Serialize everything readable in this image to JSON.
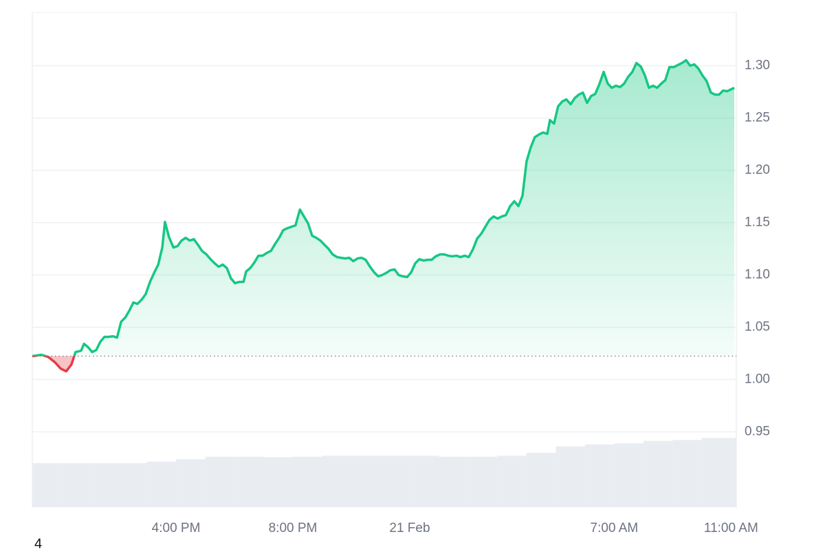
{
  "chart_data": {
    "type": "line",
    "up_color": "#16c784",
    "down_color": "#ea3943",
    "volume_color": "#e9edf2",
    "grid": true,
    "baseline": 1.0224,
    "xlim": [
      11.08,
      35.18
    ],
    "ylim": [
      0.878,
      1.351
    ],
    "xticks": [
      {
        "value": 16,
        "label": "4:00 PM"
      },
      {
        "value": 20,
        "label": "8:00 PM"
      },
      {
        "value": 24,
        "label": "21 Feb"
      },
      {
        "value": 31,
        "label": "7:00 AM"
      },
      {
        "value": 35,
        "label": "11:00 AM"
      }
    ],
    "yticks": [
      0.95,
      {
        "value": 1.0,
        "label": "1.00"
      },
      1.05,
      {
        "value": 1.1,
        "label": "1.10"
      },
      1.15,
      {
        "value": 1.2,
        "label": "1.20"
      },
      1.25,
      {
        "value": 1.3,
        "label": "1.30"
      }
    ],
    "x": [
      11.08,
      11.39,
      11.62,
      11.86,
      12.05,
      12.24,
      12.42,
      12.56,
      12.75,
      12.85,
      12.99,
      13.13,
      13.27,
      13.41,
      13.55,
      13.69,
      13.84,
      13.98,
      14.12,
      14.26,
      14.4,
      14.54,
      14.68,
      14.82,
      14.96,
      15.11,
      15.25,
      15.39,
      15.53,
      15.62,
      15.76,
      15.91,
      16.05,
      16.19,
      16.33,
      16.47,
      16.61,
      16.75,
      16.89,
      17.04,
      17.18,
      17.32,
      17.46,
      17.6,
      17.74,
      17.88,
      18.02,
      18.16,
      18.31,
      18.4,
      18.54,
      18.68,
      18.82,
      18.96,
      19.11,
      19.25,
      19.39,
      19.53,
      19.67,
      19.81,
      19.95,
      20.09,
      20.24,
      20.38,
      20.52,
      20.66,
      20.8,
      20.94,
      21.08,
      21.22,
      21.36,
      21.51,
      21.65,
      21.79,
      21.93,
      22.07,
      22.21,
      22.35,
      22.49,
      22.64,
      22.78,
      22.92,
      23.06,
      23.2,
      23.34,
      23.48,
      23.62,
      23.76,
      23.91,
      24.05,
      24.19,
      24.33,
      24.47,
      24.61,
      24.75,
      24.89,
      25.04,
      25.18,
      25.32,
      25.46,
      25.6,
      25.74,
      25.88,
      26.02,
      26.16,
      26.31,
      26.45,
      26.59,
      26.73,
      26.87,
      27.01,
      27.15,
      27.29,
      27.44,
      27.58,
      27.72,
      27.86,
      28.0,
      28.14,
      28.28,
      28.42,
      28.56,
      28.71,
      28.8,
      28.94,
      29.08,
      29.22,
      29.36,
      29.51,
      29.65,
      29.79,
      29.93,
      30.07,
      30.21,
      30.35,
      30.49,
      30.64,
      30.78,
      30.92,
      31.06,
      31.2,
      31.34,
      31.48,
      31.62,
      31.76,
      31.91,
      32.05,
      32.19,
      32.33,
      32.47,
      32.61,
      32.75,
      32.89,
      33.04,
      33.18,
      33.32,
      33.46,
      33.6,
      33.74,
      33.88,
      34.02,
      34.16,
      34.31,
      34.45,
      34.59,
      34.73,
      34.87,
      35.01,
      35.11
    ],
    "values": [
      1.0224,
      1.0237,
      1.0217,
      1.0164,
      1.0105,
      1.0079,
      1.0145,
      1.0263,
      1.0276,
      1.0342,
      1.0309,
      1.0263,
      1.0283,
      1.0362,
      1.0408,
      1.0408,
      1.0414,
      1.0401,
      1.0553,
      1.0592,
      1.0658,
      1.0737,
      1.0724,
      1.0763,
      1.0816,
      1.0934,
      1.102,
      1.1099,
      1.1263,
      1.1507,
      1.1362,
      1.1263,
      1.1276,
      1.1329,
      1.1355,
      1.1329,
      1.1342,
      1.1289,
      1.123,
      1.1197,
      1.1151,
      1.1112,
      1.1079,
      1.1099,
      1.1066,
      1.0967,
      1.0921,
      1.0934,
      1.0934,
      1.1033,
      1.1066,
      1.1118,
      1.1184,
      1.1184,
      1.1211,
      1.123,
      1.1296,
      1.1355,
      1.1428,
      1.1447,
      1.1461,
      1.1474,
      1.1625,
      1.1559,
      1.1493,
      1.1375,
      1.1355,
      1.1329,
      1.1289,
      1.125,
      1.1197,
      1.1171,
      1.1164,
      1.1158,
      1.1164,
      1.1132,
      1.1158,
      1.1164,
      1.1145,
      1.1079,
      1.1026,
      1.0987,
      1.1,
      1.102,
      1.1046,
      1.1053,
      1.1,
      1.0987,
      1.098,
      1.1026,
      1.1112,
      1.1151,
      1.1138,
      1.1145,
      1.1145,
      1.1178,
      1.1197,
      1.1197,
      1.1184,
      1.1178,
      1.1184,
      1.1171,
      1.1184,
      1.1171,
      1.1243,
      1.1349,
      1.1395,
      1.1461,
      1.1526,
      1.1559,
      1.1539,
      1.1559,
      1.1572,
      1.1658,
      1.1704,
      1.1658,
      1.1757,
      1.2086,
      1.2217,
      1.2316,
      1.2342,
      1.2362,
      1.2349,
      1.248,
      1.2447,
      1.2612,
      1.2658,
      1.2678,
      1.2632,
      1.2691,
      1.2724,
      1.2743,
      1.2645,
      1.2711,
      1.273,
      1.2822,
      1.2941,
      1.2829,
      1.2789,
      1.2809,
      1.2796,
      1.2829,
      1.2895,
      1.2941,
      1.3026,
      1.2993,
      1.2908,
      1.2789,
      1.2809,
      1.2789,
      1.2829,
      1.2862,
      1.2987,
      1.2987,
      1.3007,
      1.3026,
      1.3053,
      1.3,
      1.3013,
      1.2974,
      1.2908,
      1.2855,
      1.2743,
      1.2724,
      1.2724,
      1.2763,
      1.2757,
      1.2776,
      1.2789
    ],
    "volume": {
      "lim": [
        0,
        100
      ],
      "x": [
        11.08,
        12,
        13,
        14,
        15,
        16,
        17,
        18,
        19,
        20,
        21,
        22,
        23,
        24,
        25,
        26,
        27,
        28,
        29,
        30,
        31,
        32,
        33,
        34,
        35
      ],
      "values": [
        8.9,
        8.9,
        8.9,
        8.9,
        9.2,
        9.7,
        10.2,
        10.2,
        10.1,
        10.2,
        10.4,
        10.4,
        10.4,
        10.4,
        10.2,
        10.2,
        10.4,
        11.0,
        12.3,
        12.7,
        12.9,
        13.4,
        13.6,
        14.0,
        14.0
      ]
    }
  },
  "footnote": "4"
}
